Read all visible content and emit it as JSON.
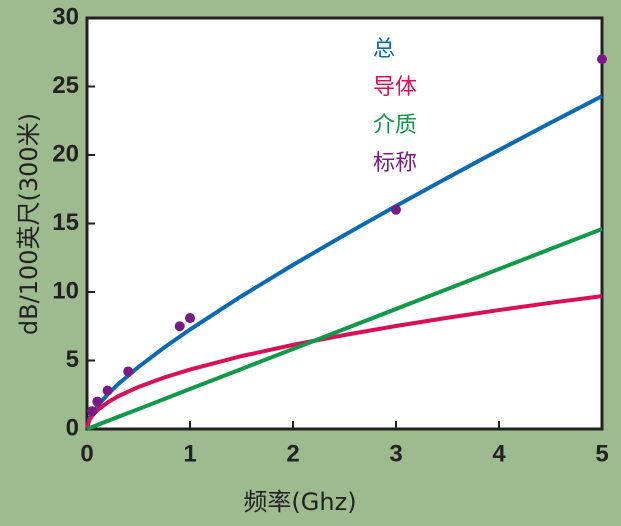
{
  "chart_data": {
    "type": "line",
    "x_label": "频率(Ghz)",
    "y_label": "dB/100英尺(300米)",
    "xlim": [
      0,
      5
    ],
    "ylim": [
      0,
      30
    ],
    "xticks": [
      0,
      1,
      2,
      3,
      4,
      5
    ],
    "yticks": [
      0,
      5,
      10,
      15,
      20,
      25,
      30
    ],
    "series": [
      {
        "name": "总",
        "color": "#0a6ab3",
        "mode": "line",
        "x": [
          0,
          0.02,
          0.05,
          0.1,
          0.2,
          0.3,
          0.5,
          0.75,
          1,
          1.5,
          2,
          2.5,
          3,
          3.5,
          4,
          4.5,
          5
        ],
        "values": [
          0,
          0.67,
          1.12,
          1.66,
          2.52,
          3.26,
          4.53,
          5.95,
          7.26,
          9.7,
          11.98,
          14.16,
          16.28,
          18.34,
          20.36,
          22.35,
          24.3
        ]
      },
      {
        "name": "导体",
        "color": "#d90f57",
        "mode": "line",
        "x": [
          0,
          0.02,
          0.05,
          0.1,
          0.2,
          0.3,
          0.5,
          0.75,
          1,
          1.5,
          2,
          2.5,
          3,
          3.5,
          4,
          4.5,
          5
        ],
        "values": [
          0,
          0.61,
          0.97,
          1.37,
          1.94,
          2.38,
          3.07,
          3.76,
          4.34,
          5.32,
          6.14,
          6.86,
          7.52,
          8.12,
          8.68,
          9.21,
          9.7
        ]
      },
      {
        "name": "介质",
        "color": "#0f9a48",
        "mode": "line",
        "x": [
          0,
          5
        ],
        "values": [
          0,
          14.6
        ]
      },
      {
        "name": "标称",
        "color": "#7a1a86",
        "mode": "markers",
        "x": [
          0.05,
          0.1,
          0.2,
          0.4,
          0.9,
          1,
          3,
          5
        ],
        "values": [
          1.3,
          2.0,
          2.8,
          4.2,
          7.5,
          8.1,
          16,
          27
        ]
      }
    ]
  }
}
